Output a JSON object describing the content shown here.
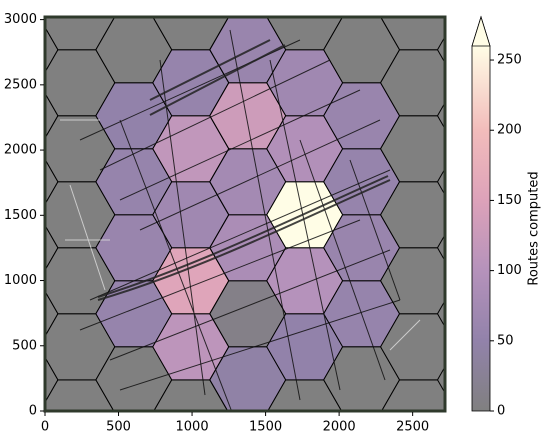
{
  "chart_data": {
    "type": "hexbin",
    "xlim": [
      0,
      2720
    ],
    "ylim": [
      0,
      3020
    ],
    "xticks": [
      0,
      500,
      1000,
      1500,
      2000,
      2500
    ],
    "yticks": [
      0,
      500,
      1000,
      1500,
      2000,
      2500,
      3000
    ],
    "background": "#808080",
    "colorbar": {
      "label": "Routes computed",
      "clim": [
        0,
        260
      ],
      "ticks": [
        0,
        50,
        100,
        150,
        200,
        250
      ],
      "extend": "max"
    },
    "colormap": [
      {
        "value": 0,
        "color": "#808080"
      },
      {
        "value": 50,
        "color": "#9282aa"
      },
      {
        "value": 100,
        "color": "#b592bb"
      },
      {
        "value": 150,
        "color": "#dda2ba"
      },
      {
        "value": 200,
        "color": "#f2bcbb"
      },
      {
        "value": 260,
        "color": "#fffde6"
      }
    ],
    "hexes": [
      {
        "x": -170,
        "y": 239,
        "value": 0
      },
      {
        "x": -170,
        "y": 745,
        "value": 0
      },
      {
        "x": -170,
        "y": 1251,
        "value": 0
      },
      {
        "x": -170,
        "y": 1757,
        "value": 0
      },
      {
        "x": -170,
        "y": 2263,
        "value": 0
      },
      {
        "x": -170,
        "y": 2769,
        "value": 0
      },
      {
        "x": 217,
        "y": -14,
        "value": 0
      },
      {
        "x": 217,
        "y": 492,
        "value": 0
      },
      {
        "x": 217,
        "y": 998,
        "value": 0
      },
      {
        "x": 217,
        "y": 1504,
        "value": 0
      },
      {
        "x": 217,
        "y": 2010,
        "value": 0
      },
      {
        "x": 217,
        "y": 2516,
        "value": 0
      },
      {
        "x": 217,
        "y": 3022,
        "value": 0
      },
      {
        "x": 604,
        "y": 239,
        "value": 0
      },
      {
        "x": 604,
        "y": 745,
        "value": 55
      },
      {
        "x": 604,
        "y": 1251,
        "value": 60
      },
      {
        "x": 604,
        "y": 1757,
        "value": 55
      },
      {
        "x": 604,
        "y": 2263,
        "value": 50
      },
      {
        "x": 604,
        "y": 2769,
        "value": 0
      },
      {
        "x": 991,
        "y": -14,
        "value": 0
      },
      {
        "x": 991,
        "y": 492,
        "value": 110
      },
      {
        "x": 991,
        "y": 998,
        "value": 155
      },
      {
        "x": 991,
        "y": 1504,
        "value": 70
      },
      {
        "x": 991,
        "y": 2010,
        "value": 115
      },
      {
        "x": 991,
        "y": 2516,
        "value": 55
      },
      {
        "x": 991,
        "y": 3022,
        "value": 0
      },
      {
        "x": 1379,
        "y": 239,
        "value": 45
      },
      {
        "x": 1379,
        "y": 745,
        "value": 10
      },
      {
        "x": 1379,
        "y": 1251,
        "value": 85
      },
      {
        "x": 1379,
        "y": 1757,
        "value": 75
      },
      {
        "x": 1379,
        "y": 2263,
        "value": 130
      },
      {
        "x": 1379,
        "y": 2769,
        "value": 60
      },
      {
        "x": 1766,
        "y": -14,
        "value": 0
      },
      {
        "x": 1766,
        "y": 492,
        "value": 50
      },
      {
        "x": 1766,
        "y": 998,
        "value": 100
      },
      {
        "x": 1766,
        "y": 1504,
        "value": 265
      },
      {
        "x": 1766,
        "y": 2010,
        "value": 95
      },
      {
        "x": 1766,
        "y": 2516,
        "value": 70
      },
      {
        "x": 1766,
        "y": 3022,
        "value": 0
      },
      {
        "x": 2153,
        "y": 239,
        "value": 0
      },
      {
        "x": 2153,
        "y": 745,
        "value": 55
      },
      {
        "x": 2153,
        "y": 1251,
        "value": 60
      },
      {
        "x": 2153,
        "y": 1757,
        "value": 55
      },
      {
        "x": 2153,
        "y": 2263,
        "value": 60
      },
      {
        "x": 2153,
        "y": 2769,
        "value": 0
      },
      {
        "x": 2540,
        "y": -14,
        "value": 0
      },
      {
        "x": 2540,
        "y": 492,
        "value": 0
      },
      {
        "x": 2540,
        "y": 998,
        "value": 0
      },
      {
        "x": 2540,
        "y": 1504,
        "value": 0
      },
      {
        "x": 2540,
        "y": 2010,
        "value": 0
      },
      {
        "x": 2540,
        "y": 2516,
        "value": 0
      },
      {
        "x": 2540,
        "y": 3022,
        "value": 0
      }
    ]
  }
}
